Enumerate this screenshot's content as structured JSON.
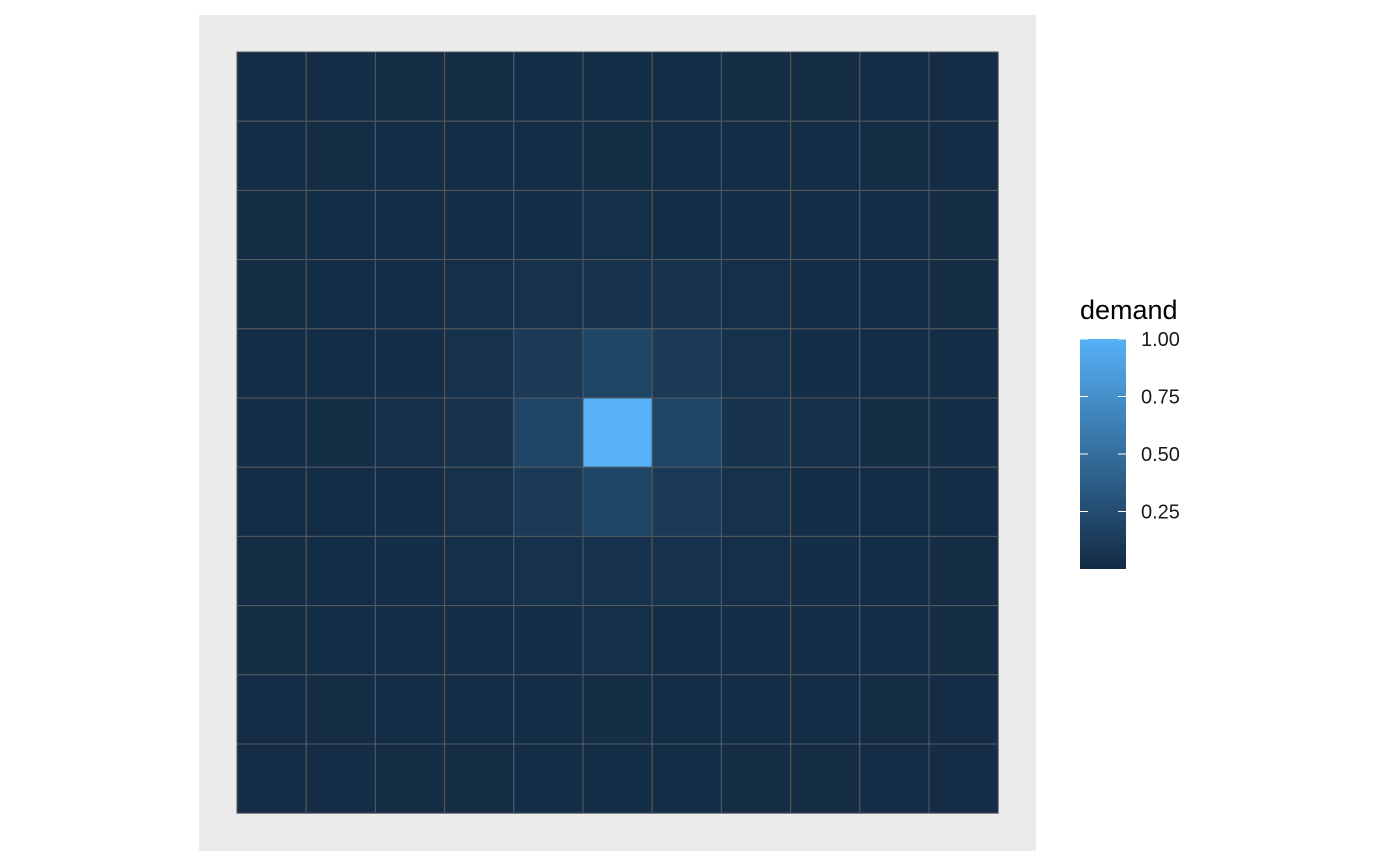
{
  "chart_data": {
    "type": "heatmap",
    "title": "",
    "xlabel": "",
    "ylabel": "",
    "rows": 11,
    "cols": 11,
    "grid": true,
    "values": [
      [
        0.01,
        0.011,
        0.012,
        0.013,
        0.014,
        0.015,
        0.014,
        0.013,
        0.012,
        0.011,
        0.01
      ],
      [
        0.011,
        0.012,
        0.014,
        0.016,
        0.018,
        0.019,
        0.018,
        0.016,
        0.014,
        0.012,
        0.011
      ],
      [
        0.012,
        0.014,
        0.017,
        0.021,
        0.026,
        0.029,
        0.026,
        0.021,
        0.017,
        0.014,
        0.012
      ],
      [
        0.013,
        0.016,
        0.021,
        0.03,
        0.045,
        0.056,
        0.045,
        0.03,
        0.021,
        0.016,
        0.013
      ],
      [
        0.014,
        0.018,
        0.026,
        0.045,
        0.11,
        0.2,
        0.11,
        0.045,
        0.026,
        0.018,
        0.014
      ],
      [
        0.015,
        0.019,
        0.029,
        0.056,
        0.2,
        1.0,
        0.2,
        0.056,
        0.029,
        0.019,
        0.015
      ],
      [
        0.014,
        0.018,
        0.026,
        0.045,
        0.11,
        0.2,
        0.11,
        0.045,
        0.026,
        0.018,
        0.014
      ],
      [
        0.013,
        0.016,
        0.021,
        0.03,
        0.045,
        0.056,
        0.045,
        0.03,
        0.021,
        0.016,
        0.013
      ],
      [
        0.012,
        0.014,
        0.017,
        0.021,
        0.026,
        0.029,
        0.026,
        0.021,
        0.017,
        0.014,
        0.012
      ],
      [
        0.011,
        0.012,
        0.014,
        0.016,
        0.018,
        0.019,
        0.018,
        0.016,
        0.014,
        0.012,
        0.011
      ],
      [
        0.01,
        0.011,
        0.012,
        0.013,
        0.014,
        0.015,
        0.014,
        0.013,
        0.012,
        0.011,
        0.01
      ]
    ],
    "color_scale": {
      "low": "#132B43",
      "high": "#56B1F7",
      "range": [
        0,
        1
      ]
    },
    "legend": {
      "title": "demand",
      "position": "right",
      "breaks": [
        0.25,
        0.5,
        0.75,
        1.0
      ],
      "labels": [
        "0.25",
        "0.50",
        "0.75",
        "1.00"
      ]
    },
    "colors": {
      "panel_background": "#EBEBEB",
      "tile_border": "#555a60"
    }
  }
}
